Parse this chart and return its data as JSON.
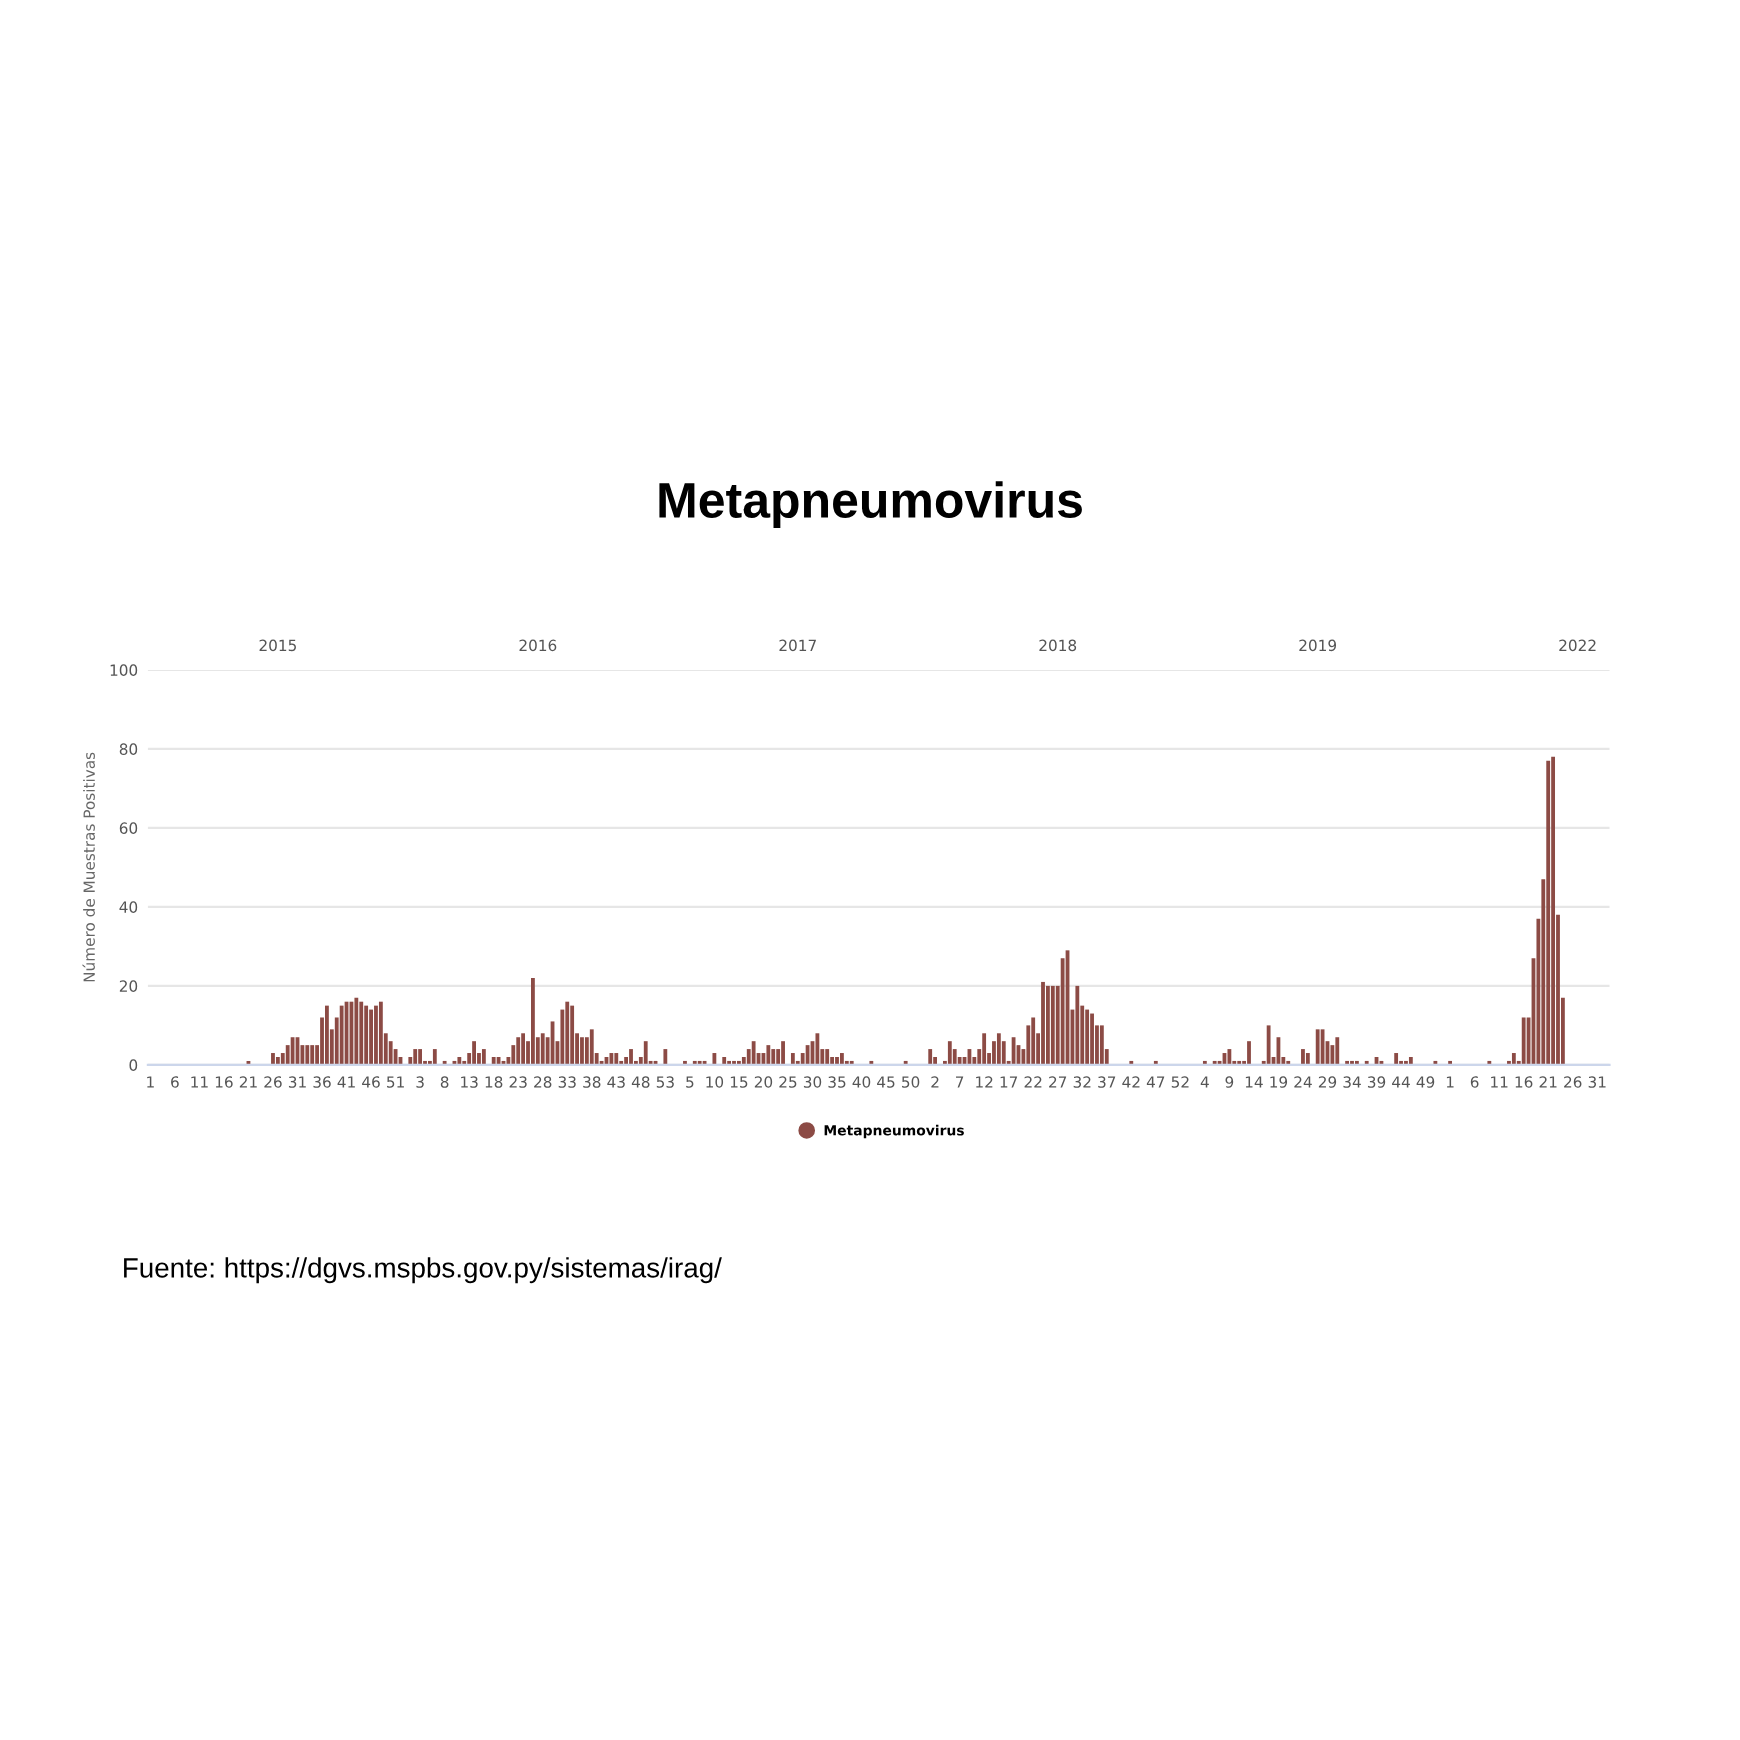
{
  "chart_data": {
    "type": "bar",
    "title": "Metapneumovirus",
    "ylabel": "Número de Muestras Positivas",
    "categories": [
      "1",
      null,
      null,
      null,
      null,
      "6",
      null,
      null,
      null,
      null,
      "11",
      null,
      null,
      null,
      null,
      "16",
      null,
      null,
      null,
      null,
      "21",
      null,
      null,
      null,
      null,
      "26",
      null,
      null,
      null,
      null,
      "31",
      null,
      null,
      null,
      null,
      "36",
      null,
      null,
      null,
      null,
      "41",
      null,
      null,
      null,
      null,
      "46",
      null,
      null,
      null,
      null,
      "51",
      null,
      null,
      null,
      null,
      "3",
      null,
      null,
      null,
      null,
      "8",
      null,
      null,
      null,
      null,
      "13",
      null,
      null,
      null,
      null,
      "18",
      null,
      null,
      null,
      null,
      "23",
      null,
      null,
      null,
      null,
      "28",
      null,
      null,
      null,
      null,
      "33",
      null,
      null,
      null,
      null,
      "38",
      null,
      null,
      null,
      null,
      "43",
      null,
      null,
      null,
      null,
      "48",
      null,
      null,
      null,
      null,
      "53",
      null,
      null,
      null,
      null,
      "5",
      null,
      null,
      null,
      null,
      "10",
      null,
      null,
      null,
      null,
      "15",
      null,
      null,
      null,
      null,
      "20",
      null,
      null,
      null,
      null,
      "25",
      null,
      null,
      null,
      null,
      "30",
      null,
      null,
      null,
      null,
      "35",
      null,
      null,
      null,
      null,
      "40",
      null,
      null,
      null,
      null,
      "45",
      null,
      null,
      null,
      null,
      "50",
      null,
      null,
      null,
      null,
      "2",
      null,
      null,
      null,
      null,
      "7",
      null,
      null,
      null,
      null,
      "12",
      null,
      null,
      null,
      null,
      "17",
      null,
      null,
      null,
      null,
      "22",
      null,
      null,
      null,
      null,
      "27",
      null,
      null,
      null,
      null,
      "32",
      null,
      null,
      null,
      null,
      "37",
      null,
      null,
      null,
      null,
      "42",
      null,
      null,
      null,
      null,
      "47",
      null,
      null,
      null,
      null,
      "52",
      null,
      null,
      null,
      null,
      "4",
      null,
      null,
      null,
      null,
      "9",
      null,
      null,
      null,
      null,
      "14",
      null,
      null,
      null,
      null,
      "19",
      null,
      null,
      null,
      null,
      "24",
      null,
      null,
      null,
      null,
      "29",
      null,
      null,
      null,
      null,
      "34",
      null,
      null,
      null,
      null,
      "39",
      null,
      null,
      null,
      null,
      "44",
      null,
      null,
      null,
      null,
      "49",
      null,
      null,
      null,
      null,
      "1",
      null,
      null,
      null,
      null,
      "6",
      null,
      null,
      null,
      null,
      "11",
      null,
      null,
      null,
      null,
      "16",
      null,
      null,
      null,
      null,
      "21",
      null,
      null,
      null,
      null,
      "26",
      null,
      null,
      null,
      null,
      "31",
      null,
      null
    ],
    "series": [
      {
        "name": "Metapneumovirus",
        "color": "#8c4b45",
        "values": [
          0,
          0,
          0,
          0,
          0,
          0,
          0,
          0,
          0,
          0,
          0,
          0,
          0,
          0,
          0,
          0,
          0,
          0,
          0,
          0,
          1,
          0,
          0,
          0,
          0,
          3,
          2,
          3,
          5,
          7,
          7,
          5,
          5,
          5,
          5,
          12,
          15,
          9,
          12,
          15,
          16,
          16,
          17,
          16,
          15,
          14,
          15,
          16,
          8,
          6,
          4,
          2,
          0,
          2,
          4,
          4,
          1,
          1,
          4,
          0,
          1,
          0,
          1,
          2,
          1,
          3,
          6,
          3,
          4,
          0,
          2,
          2,
          1,
          2,
          5,
          7,
          8,
          6,
          22,
          7,
          8,
          7,
          11,
          6,
          14,
          16,
          15,
          8,
          7,
          7,
          9,
          3,
          1,
          2,
          3,
          3,
          1,
          2,
          4,
          1,
          2,
          6,
          1,
          1,
          0,
          4,
          0,
          0,
          0,
          1,
          0,
          1,
          1,
          1,
          0,
          3,
          0,
          2,
          1,
          1,
          1,
          2,
          4,
          6,
          3,
          3,
          5,
          4,
          4,
          6,
          0,
          3,
          1,
          3,
          5,
          6,
          8,
          4,
          4,
          2,
          2,
          3,
          1,
          1,
          0,
          0,
          0,
          1,
          0,
          0,
          0,
          0,
          0,
          0,
          1,
          0,
          0,
          0,
          0,
          4,
          2,
          0,
          1,
          6,
          4,
          2,
          2,
          4,
          2,
          4,
          8,
          3,
          6,
          8,
          6,
          1,
          7,
          5,
          4,
          10,
          12,
          8,
          21,
          20,
          20,
          20,
          27,
          29,
          14,
          20,
          15,
          14,
          13,
          10,
          10,
          4,
          0,
          0,
          0,
          0,
          1,
          0,
          0,
          0,
          0,
          1,
          0,
          0,
          0,
          0,
          0,
          0,
          0,
          0,
          0,
          1,
          0,
          1,
          1,
          3,
          4,
          1,
          1,
          1,
          6,
          0,
          0,
          1,
          10,
          2,
          7,
          2,
          1,
          0,
          0,
          4,
          3,
          0,
          9,
          9,
          6,
          5,
          7,
          0,
          1,
          1,
          1,
          0,
          1,
          0,
          2,
          1,
          0,
          0,
          3,
          1,
          1,
          2,
          0,
          0,
          0,
          0,
          1,
          0,
          0,
          1,
          0,
          0,
          0,
          0,
          0,
          0,
          0,
          1,
          0,
          0,
          0,
          1,
          3,
          1,
          12,
          12,
          27,
          37,
          47,
          77,
          78,
          38,
          17,
          0,
          0,
          0,
          0,
          0,
          0,
          0,
          0,
          0
        ]
      }
    ],
    "ylim": [
      0,
      100
    ],
    "yticks": [
      0,
      20,
      40,
      60,
      80,
      100
    ],
    "grid": "y",
    "legend": "bottom",
    "marker": "circle",
    "annotations": [
      "2015",
      "2016",
      "2017",
      "2018",
      "2019",
      "2022",
      "Fuente: https://dgvs.mspbs.gov.py/sistemas/irag/"
    ]
  }
}
